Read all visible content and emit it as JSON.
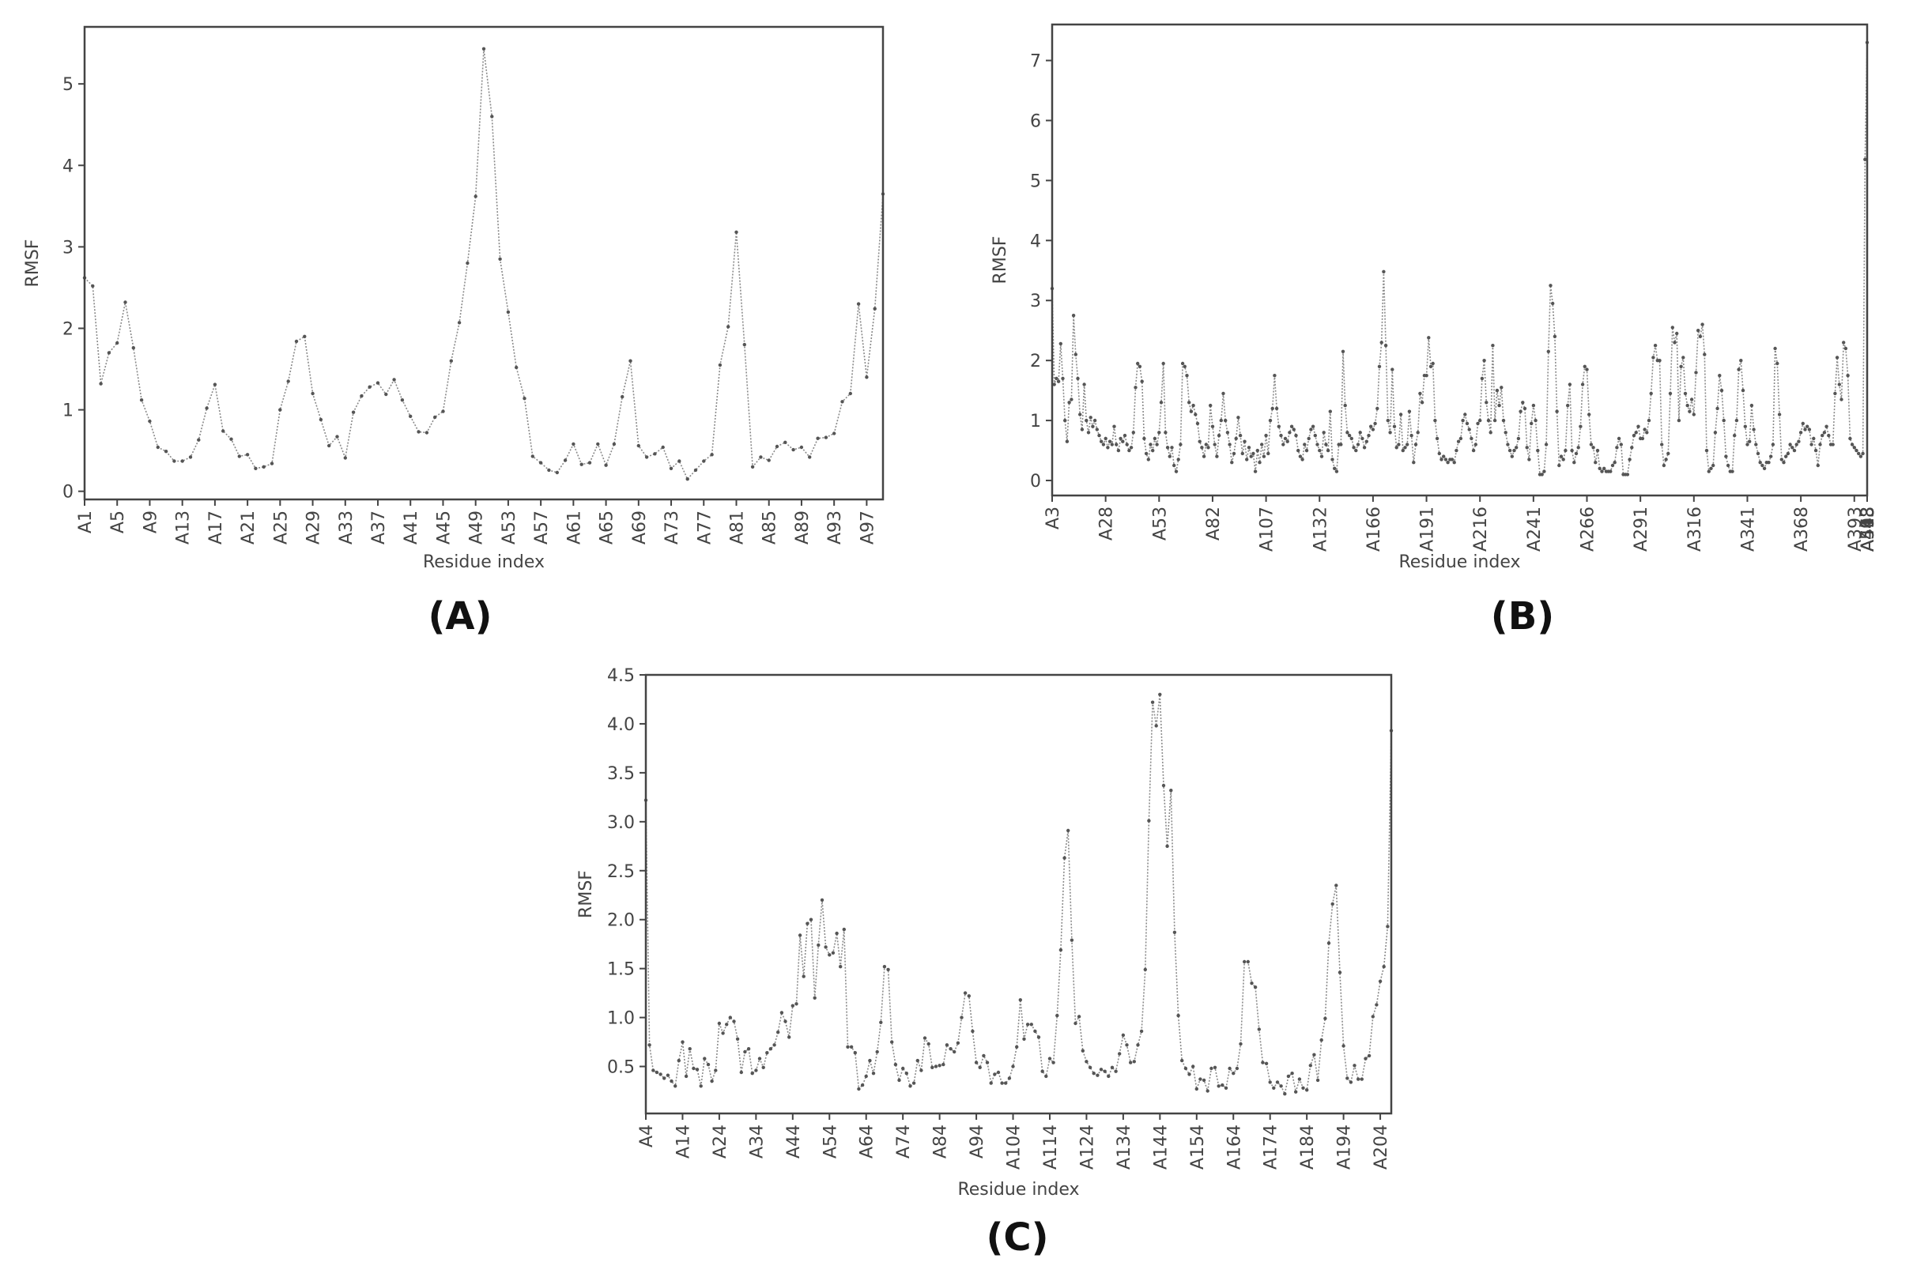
{
  "figure": {
    "panels": [
      {
        "id": "A",
        "label": "(A)"
      },
      {
        "id": "B",
        "label": "(B)"
      },
      {
        "id": "C",
        "label": "(C)"
      }
    ]
  },
  "style": {
    "line_color": "#8a8a8a",
    "marker_color": "#555555",
    "axis_color": "#444444",
    "background": "#ffffff"
  },
  "chart_data": [
    {
      "panel": "A",
      "type": "line",
      "title": "",
      "xlabel": "Residue index",
      "ylabel": "RMSF",
      "ylim": [
        -0.1,
        5.7
      ],
      "yticks": [
        0,
        1,
        2,
        3,
        4,
        5
      ],
      "ytick_labels": [
        "0",
        "1",
        "2",
        "3",
        "4",
        "5"
      ],
      "x_prefix": "A",
      "x_start": 1,
      "xtick_labels": [
        "A1",
        "A5",
        "A9",
        "A13",
        "A17",
        "A21",
        "A25",
        "A29",
        "A33",
        "A37",
        "A41",
        "A45",
        "A49",
        "A53",
        "A57",
        "A61",
        "A65",
        "A69",
        "A73",
        "A77",
        "A81",
        "A85",
        "A89",
        "A93",
        "A97"
      ],
      "xtick_step": 4,
      "grid": false,
      "values": [
        2.62,
        2.52,
        1.32,
        1.7,
        1.82,
        2.32,
        1.76,
        1.12,
        0.86,
        0.54,
        0.49,
        0.37,
        0.37,
        0.42,
        0.63,
        1.02,
        1.31,
        0.74,
        0.64,
        0.43,
        0.45,
        0.28,
        0.3,
        0.34,
        1.0,
        1.35,
        1.84,
        1.9,
        1.2,
        0.88,
        0.56,
        0.67,
        0.41,
        0.97,
        1.17,
        1.28,
        1.33,
        1.19,
        1.37,
        1.12,
        0.92,
        0.73,
        0.72,
        0.91,
        0.98,
        1.6,
        2.07,
        2.8,
        3.62,
        5.43,
        4.6,
        2.85,
        2.2,
        1.52,
        1.14,
        0.43,
        0.35,
        0.26,
        0.23,
        0.38,
        0.58,
        0.33,
        0.35,
        0.58,
        0.32,
        0.58,
        1.16,
        1.6,
        0.56,
        0.42,
        0.46,
        0.54,
        0.28,
        0.37,
        0.15,
        0.26,
        0.37,
        0.45,
        1.55,
        2.02,
        3.18,
        1.8,
        0.3,
        0.42,
        0.38,
        0.55,
        0.6,
        0.51,
        0.54,
        0.42,
        0.65,
        0.66,
        0.71,
        1.1,
        1.2,
        2.3,
        1.4,
        2.24,
        3.65
      ]
    },
    {
      "panel": "B",
      "type": "line",
      "title": "",
      "xlabel": "Residue index",
      "ylabel": "RMSF",
      "ylim": [
        -0.25,
        7.6
      ],
      "yticks": [
        0,
        1,
        2,
        3,
        4,
        5,
        6,
        7
      ],
      "ytick_labels": [
        "0",
        "1",
        "2",
        "3",
        "4",
        "5",
        "6",
        "7"
      ],
      "xtick_labels": [
        "A3",
        "A28",
        "A53",
        "A82",
        "A107",
        "A132",
        "A166",
        "A191",
        "A216",
        "A241",
        "A266",
        "A291",
        "A316",
        "A341",
        "A368",
        "A393",
        "A418",
        "A443",
        "A468",
        "A493",
        "A518",
        "A543"
      ],
      "xtick_step": 25,
      "grid": false,
      "values": [
        3.2,
        1.6,
        1.7,
        1.65,
        2.28,
        1.7,
        1.0,
        0.65,
        1.3,
        1.35,
        2.75,
        2.1,
        1.7,
        1.1,
        0.85,
        1.6,
        1.0,
        0.8,
        1.05,
        0.9,
        1.0,
        0.85,
        0.75,
        0.65,
        0.6,
        0.7,
        0.55,
        0.65,
        0.6,
        0.9,
        0.6,
        0.5,
        0.7,
        0.65,
        0.75,
        0.6,
        0.5,
        0.55,
        0.8,
        1.55,
        1.95,
        1.9,
        1.65,
        0.7,
        0.45,
        0.35,
        0.6,
        0.5,
        0.7,
        0.6,
        0.8,
        1.3,
        1.95,
        0.8,
        0.55,
        0.4,
        0.55,
        0.25,
        0.15,
        0.35,
        0.6,
        1.95,
        1.9,
        1.75,
        1.3,
        1.15,
        1.25,
        1.1,
        0.95,
        0.65,
        0.55,
        0.4,
        0.6,
        0.55,
        1.25,
        0.9,
        0.6,
        0.4,
        0.75,
        1.0,
        1.45,
        1.0,
        0.8,
        0.6,
        0.3,
        0.45,
        0.7,
        1.05,
        0.75,
        0.45,
        0.65,
        0.35,
        0.55,
        0.4,
        0.45,
        0.15,
        0.5,
        0.3,
        0.6,
        0.4,
        0.75,
        0.45,
        1.0,
        1.2,
        1.75,
        1.2,
        0.9,
        0.75,
        0.6,
        0.7,
        0.65,
        0.8,
        0.9,
        0.85,
        0.75,
        0.5,
        0.4,
        0.35,
        0.6,
        0.5,
        0.7,
        0.85,
        0.9,
        0.75,
        0.6,
        0.5,
        0.4,
        0.8,
        0.6,
        0.5,
        1.15,
        0.35,
        0.2,
        0.15,
        0.6,
        0.6,
        2.15,
        1.25,
        0.8,
        0.75,
        0.7,
        0.55,
        0.5,
        0.6,
        0.8,
        0.7,
        0.55,
        0.65,
        0.75,
        0.9,
        0.85,
        0.95,
        1.2,
        1.9,
        2.3,
        3.48,
        2.25,
        1.0,
        0.8,
        1.85,
        0.9,
        0.55,
        0.6,
        1.1,
        0.5,
        0.55,
        0.6,
        1.15,
        0.75,
        0.3,
        0.6,
        0.8,
        1.45,
        1.3,
        1.75,
        1.75,
        2.38,
        1.9,
        1.95,
        1.0,
        0.7,
        0.45,
        0.35,
        0.4,
        0.35,
        0.3,
        0.35,
        0.35,
        0.3,
        0.5,
        0.65,
        0.7,
        1.0,
        1.1,
        0.95,
        0.85,
        0.7,
        0.5,
        0.6,
        0.95,
        1.0,
        1.7,
        2.0,
        1.3,
        1.0,
        0.8,
        2.25,
        1.0,
        1.5,
        1.25,
        1.55,
        1.0,
        0.8,
        0.6,
        0.5,
        0.4,
        0.5,
        0.55,
        0.7,
        1.15,
        1.3,
        1.2,
        0.55,
        0.35,
        0.95,
        1.25,
        1.0,
        0.5,
        0.1,
        0.1,
        0.15,
        0.6,
        2.15,
        3.25,
        2.95,
        2.4,
        1.15,
        0.25,
        0.4,
        0.35,
        0.5,
        1.25,
        1.6,
        0.5,
        0.3,
        0.45,
        0.55,
        0.9,
        1.6,
        1.9,
        1.85,
        1.1,
        0.6,
        0.55,
        0.3,
        0.5,
        0.2,
        0.15,
        0.2,
        0.15,
        0.15,
        0.15,
        0.25,
        0.3,
        0.55,
        0.7,
        0.6,
        0.1,
        0.1,
        0.1,
        0.35,
        0.55,
        0.75,
        0.8,
        0.9,
        0.7,
        0.7,
        0.85,
        0.8,
        1.0,
        1.45,
        2.05,
        2.25,
        2.0,
        2.0,
        0.6,
        0.25,
        0.35,
        0.45,
        1.45,
        2.55,
        2.3,
        2.45,
        1.0,
        1.9,
        2.05,
        1.45,
        1.25,
        1.15,
        1.35,
        1.1,
        1.8,
        2.5,
        2.4,
        2.6,
        2.1,
        0.5,
        0.15,
        0.2,
        0.25,
        0.8,
        1.2,
        1.75,
        1.5,
        1.0,
        0.4,
        0.25,
        0.15,
        0.15,
        0.75,
        1.0,
        1.85,
        2.0,
        1.5,
        0.9,
        0.6,
        0.65,
        1.25,
        0.85,
        0.6,
        0.45,
        0.3,
        0.25,
        0.2,
        0.3,
        0.3,
        0.4,
        0.6,
        2.2,
        1.95,
        1.1,
        0.35,
        0.3,
        0.4,
        0.45,
        0.6,
        0.55,
        0.5,
        0.6,
        0.65,
        0.8,
        0.95,
        0.85,
        0.9,
        0.85,
        0.6,
        0.7,
        0.5,
        0.25,
        0.6,
        0.75,
        0.8,
        0.9,
        0.75,
        0.6,
        0.6,
        1.45,
        2.05,
        1.6,
        1.35,
        2.3,
        2.2,
        1.75,
        0.7,
        0.6,
        0.55,
        0.5,
        0.45,
        0.4,
        0.45,
        5.35,
        7.3
      ]
    },
    {
      "panel": "C",
      "type": "line",
      "title": "",
      "xlabel": "Residue index",
      "ylabel": "RMSF",
      "ylim": [
        0.02,
        4.5
      ],
      "yticks": [
        0.5,
        1.0,
        1.5,
        2.0,
        2.5,
        3.0,
        3.5,
        4.0,
        4.5
      ],
      "ytick_labels": [
        "0.5",
        "1.0",
        "1.5",
        "2.0",
        "2.5",
        "3.0",
        "3.5",
        "4.0",
        "4.5"
      ],
      "x_prefix": "A",
      "x_start": 4,
      "xtick_labels": [
        "A4",
        "A14",
        "A24",
        "A34",
        "A44",
        "A54",
        "A64",
        "A74",
        "A84",
        "A94",
        "A104",
        "A114",
        "A124",
        "A134",
        "A144",
        "A154",
        "A164",
        "A174",
        "A184",
        "A194",
        "A204"
      ],
      "xtick_step": 10,
      "grid": false,
      "values": [
        3.22,
        0.72,
        0.46,
        0.44,
        0.42,
        0.38,
        0.41,
        0.35,
        0.3,
        0.56,
        0.75,
        0.4,
        0.68,
        0.48,
        0.47,
        0.3,
        0.58,
        0.52,
        0.35,
        0.46,
        0.94,
        0.84,
        0.93,
        1.0,
        0.96,
        0.78,
        0.44,
        0.65,
        0.68,
        0.43,
        0.46,
        0.58,
        0.49,
        0.64,
        0.68,
        0.72,
        0.85,
        1.05,
        0.96,
        0.8,
        1.12,
        1.14,
        1.84,
        1.42,
        1.96,
        2.0,
        1.2,
        1.74,
        2.2,
        1.72,
        1.64,
        1.66,
        1.86,
        1.52,
        1.9,
        0.7,
        0.7,
        0.64,
        0.27,
        0.31,
        0.4,
        0.56,
        0.43,
        0.65,
        0.95,
        1.52,
        1.49,
        0.75,
        0.52,
        0.36,
        0.48,
        0.43,
        0.3,
        0.33,
        0.56,
        0.46,
        0.79,
        0.73,
        0.49,
        0.5,
        0.51,
        0.52,
        0.72,
        0.68,
        0.65,
        0.74,
        1.0,
        1.25,
        1.22,
        0.86,
        0.54,
        0.49,
        0.61,
        0.54,
        0.33,
        0.42,
        0.44,
        0.33,
        0.33,
        0.38,
        0.5,
        0.7,
        1.18,
        0.78,
        0.93,
        0.93,
        0.86,
        0.8,
        0.45,
        0.4,
        0.58,
        0.54,
        1.02,
        1.69,
        2.63,
        2.91,
        1.79,
        0.94,
        1.01,
        0.66,
        0.55,
        0.49,
        0.43,
        0.41,
        0.47,
        0.45,
        0.4,
        0.49,
        0.45,
        0.63,
        0.82,
        0.72,
        0.54,
        0.55,
        0.72,
        0.86,
        1.49,
        3.01,
        4.22,
        3.98,
        4.3,
        3.37,
        2.75,
        3.32,
        1.87,
        1.02,
        0.56,
        0.48,
        0.42,
        0.5,
        0.27,
        0.37,
        0.36,
        0.25,
        0.48,
        0.49,
        0.3,
        0.31,
        0.28,
        0.48,
        0.43,
        0.48,
        0.73,
        1.57,
        1.57,
        1.35,
        1.31,
        0.88,
        0.54,
        0.53,
        0.34,
        0.28,
        0.34,
        0.3,
        0.22,
        0.4,
        0.43,
        0.24,
        0.37,
        0.28,
        0.26,
        0.51,
        0.62,
        0.36,
        0.77,
        0.99,
        1.76,
        2.16,
        2.35,
        1.46,
        0.71,
        0.38,
        0.34,
        0.51,
        0.37,
        0.37,
        0.58,
        0.61,
        1.01,
        1.13,
        1.37,
        1.52,
        1.93,
        3.93
      ]
    }
  ]
}
